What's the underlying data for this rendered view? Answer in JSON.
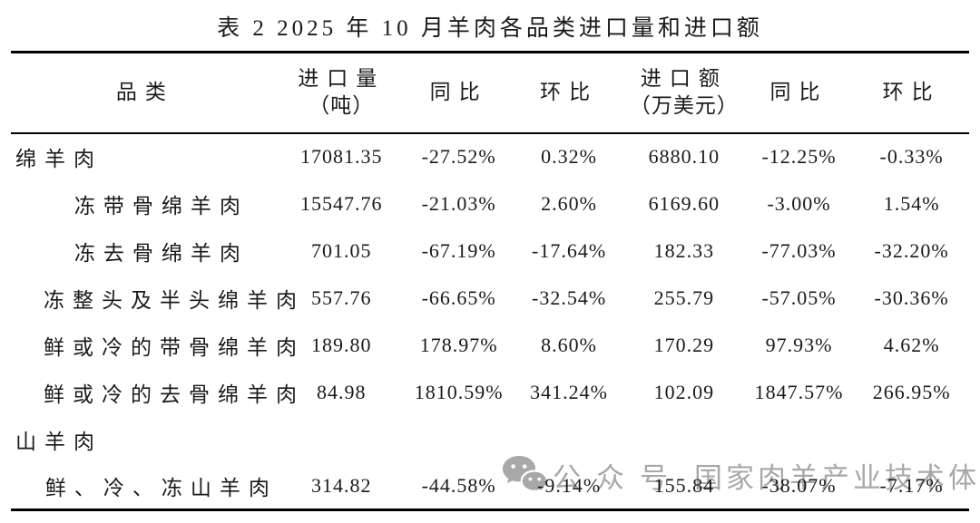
{
  "title": "表 2 2025 年 10 月羊肉各品类进口量和进口额",
  "table": {
    "columns": [
      {
        "line1": "品类"
      },
      {
        "line1": "进口量",
        "line2": "（吨）"
      },
      {
        "line1": "同比"
      },
      {
        "line1": "环比"
      },
      {
        "line1": "进口额",
        "line2": "（万美元）"
      },
      {
        "line1": "同比"
      },
      {
        "line1": "环比"
      }
    ],
    "rows": [
      {
        "category": "绵羊肉",
        "level": "group",
        "values": [
          "17081.35",
          "-27.52%",
          "0.32%",
          "6880.10",
          "-12.25%",
          "-0.33%"
        ]
      },
      {
        "category": "冻带骨绵羊肉",
        "level": "sub",
        "values": [
          "15547.76",
          "-21.03%",
          "2.60%",
          "6169.60",
          "-3.00%",
          "1.54%"
        ]
      },
      {
        "category": "冻去骨绵羊肉",
        "level": "sub",
        "values": [
          "701.05",
          "-67.19%",
          "-17.64%",
          "182.33",
          "-77.03%",
          "-32.20%"
        ]
      },
      {
        "category": "冻整头及半头绵羊肉",
        "level": "sub",
        "values": [
          "557.76",
          "-66.65%",
          "-32.54%",
          "255.79",
          "-57.05%",
          "-30.36%"
        ]
      },
      {
        "category": "鲜或冷的带骨绵羊肉",
        "level": "sub",
        "values": [
          "189.80",
          "178.97%",
          "8.60%",
          "170.29",
          "97.93%",
          "4.62%"
        ]
      },
      {
        "category": "鲜或冷的去骨绵羊肉",
        "level": "sub",
        "values": [
          "84.98",
          "1810.59%",
          "341.24%",
          "102.09",
          "1847.57%",
          "266.95%"
        ]
      },
      {
        "category": "山羊肉",
        "level": "group",
        "values": [
          "",
          "",
          "",
          "",
          "",
          ""
        ]
      },
      {
        "category": "鲜、冷、冻山羊肉",
        "level": "sub",
        "values": [
          "314.82",
          "-44.58%",
          "-9.14%",
          "155.84",
          "-38.07%",
          "-7.17%"
        ]
      }
    ]
  },
  "watermark": {
    "icon": "wechat-icon",
    "label": "公众号",
    "text": "国家肉羊产业技术体系",
    "color": "#a8a8a8"
  }
}
